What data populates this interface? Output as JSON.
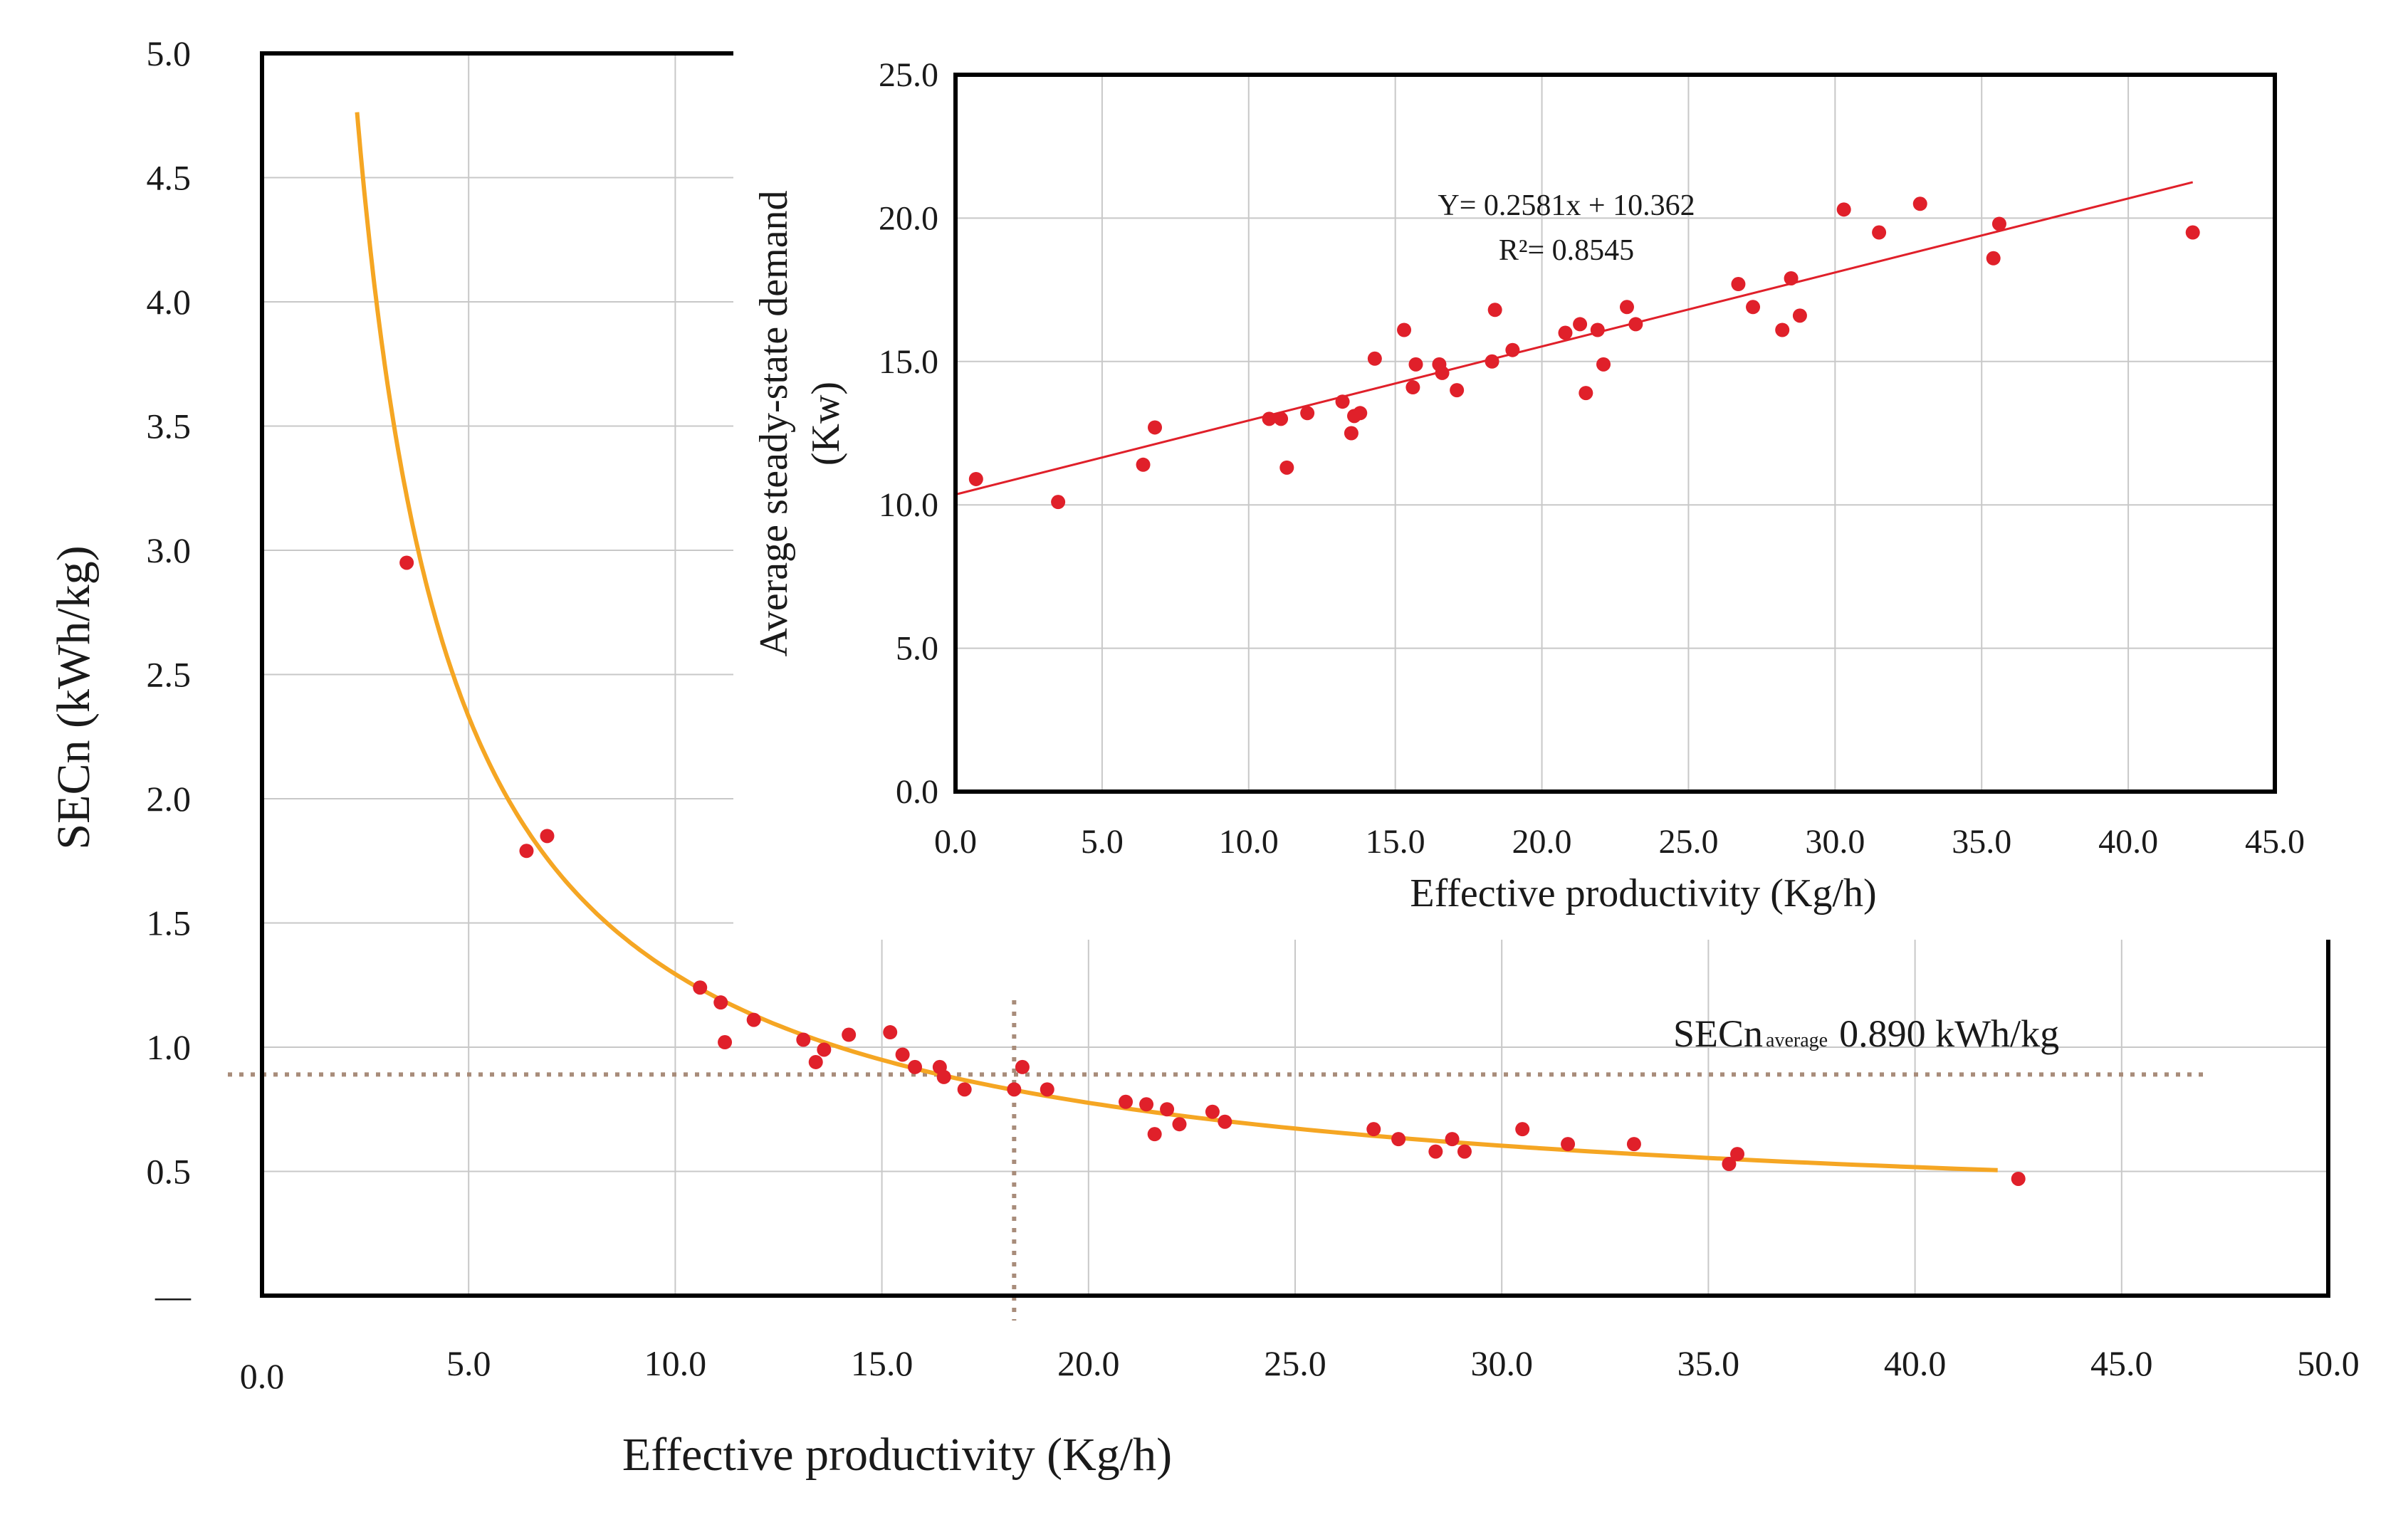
{
  "chart_data": [
    {
      "name": "main",
      "type": "scatter",
      "xlabel": "Effective productivity (Kg/h)",
      "ylabel": "SECn (kWh/kg)",
      "xlim": [
        0,
        50
      ],
      "ylim": [
        0,
        5
      ],
      "x_ticks": [
        "0.0",
        "5.0",
        "10.0",
        "15.0",
        "20.0",
        "25.0",
        "30.0",
        "35.0",
        "40.0",
        "45.0",
        "50.0"
      ],
      "y_ticks": [
        "—",
        "0.5",
        "1.0",
        "1.5",
        "2.0",
        "2.5",
        "3.0",
        "3.5",
        "4.0",
        "4.5",
        "5.0"
      ],
      "points": [
        [
          3.5,
          2.95
        ],
        [
          6.4,
          1.79
        ],
        [
          6.9,
          1.85
        ],
        [
          10.6,
          1.24
        ],
        [
          11.1,
          1.18
        ],
        [
          11.2,
          1.02
        ],
        [
          11.9,
          1.11
        ],
        [
          13.1,
          1.03
        ],
        [
          13.4,
          0.94
        ],
        [
          13.6,
          0.99
        ],
        [
          14.2,
          1.05
        ],
        [
          15.2,
          1.06
        ],
        [
          15.5,
          0.97
        ],
        [
          15.8,
          0.92
        ],
        [
          16.4,
          0.92
        ],
        [
          16.5,
          0.88
        ],
        [
          17.0,
          0.83
        ],
        [
          18.2,
          0.83
        ],
        [
          18.4,
          0.92
        ],
        [
          19.0,
          0.83
        ],
        [
          20.9,
          0.78
        ],
        [
          21.4,
          0.77
        ],
        [
          21.6,
          0.65
        ],
        [
          21.9,
          0.75
        ],
        [
          22.2,
          0.69
        ],
        [
          23.0,
          0.74
        ],
        [
          23.3,
          0.7
        ],
        [
          26.9,
          0.67
        ],
        [
          27.5,
          0.63
        ],
        [
          28.4,
          0.58
        ],
        [
          28.8,
          0.63
        ],
        [
          29.1,
          0.58
        ],
        [
          30.5,
          0.67
        ],
        [
          31.6,
          0.61
        ],
        [
          33.2,
          0.61
        ],
        [
          35.5,
          0.53
        ],
        [
          35.7,
          0.57
        ],
        [
          42.5,
          0.47
        ]
      ],
      "fit_curve": {
        "type": "power",
        "x_from": 2.3,
        "x_to": 42.0,
        "coef": 10.362,
        "slope": 0.2581
      },
      "avg_line": {
        "y": 0.89,
        "label": "SECn",
        "label_sub": "average",
        "label_value": "0.890 kWh/kg"
      },
      "avg_vline": {
        "x": 18.2
      },
      "colors": {
        "points": "#e0202a",
        "fit": "#f5a623",
        "ref_lines": "#a88c7a",
        "grid": "#c8c8c8",
        "axis": "#000000"
      }
    },
    {
      "name": "inset",
      "type": "scatter",
      "xlabel": "Effective productivity (Kg/h)",
      "ylabel_line1": "Average steady-state demand",
      "ylabel_line2": "(Kw)",
      "xlim": [
        0,
        45
      ],
      "ylim": [
        0,
        25
      ],
      "x_ticks": [
        "0.0",
        "5.0",
        "10.0",
        "15.0",
        "20.0",
        "25.0",
        "30.0",
        "35.0",
        "40.0",
        "45.0"
      ],
      "y_ticks": [
        "0.0",
        "5.0",
        "10.0",
        "15.0",
        "20.0",
        "25.0"
      ],
      "points": [
        [
          0.7,
          10.9
        ],
        [
          3.5,
          10.1
        ],
        [
          6.4,
          11.4
        ],
        [
          6.8,
          12.7
        ],
        [
          10.7,
          13.0
        ],
        [
          11.1,
          13.0
        ],
        [
          11.3,
          11.3
        ],
        [
          12.0,
          13.2
        ],
        [
          13.2,
          13.6
        ],
        [
          13.5,
          12.5
        ],
        [
          13.6,
          13.1
        ],
        [
          13.8,
          13.2
        ],
        [
          14.3,
          15.1
        ],
        [
          15.3,
          16.1
        ],
        [
          15.6,
          14.1
        ],
        [
          15.7,
          14.9
        ],
        [
          16.5,
          14.9
        ],
        [
          16.6,
          14.6
        ],
        [
          17.1,
          14.0
        ],
        [
          18.3,
          15.0
        ],
        [
          18.4,
          16.8
        ],
        [
          19.0,
          15.4
        ],
        [
          20.8,
          16.0
        ],
        [
          21.3,
          16.3
        ],
        [
          21.5,
          13.9
        ],
        [
          21.9,
          16.1
        ],
        [
          22.1,
          14.9
        ],
        [
          22.9,
          16.9
        ],
        [
          23.2,
          16.3
        ],
        [
          26.7,
          17.7
        ],
        [
          27.2,
          16.9
        ],
        [
          28.2,
          16.1
        ],
        [
          28.5,
          17.9
        ],
        [
          28.8,
          16.6
        ],
        [
          30.3,
          20.3
        ],
        [
          31.5,
          19.5
        ],
        [
          32.9,
          20.5
        ],
        [
          35.4,
          18.6
        ],
        [
          35.6,
          19.8
        ],
        [
          42.2,
          19.5
        ]
      ],
      "trendline": {
        "x_from": 0,
        "x_to": 42.2,
        "slope": 0.2581,
        "intercept": 10.362
      },
      "equation": "Y= 0.2581x + 10.362",
      "r_squared": "R²= 0.8545",
      "colors": {
        "points": "#e0202a",
        "trend": "#e0202a",
        "grid": "#c8c8c8",
        "axis": "#000000"
      }
    }
  ]
}
